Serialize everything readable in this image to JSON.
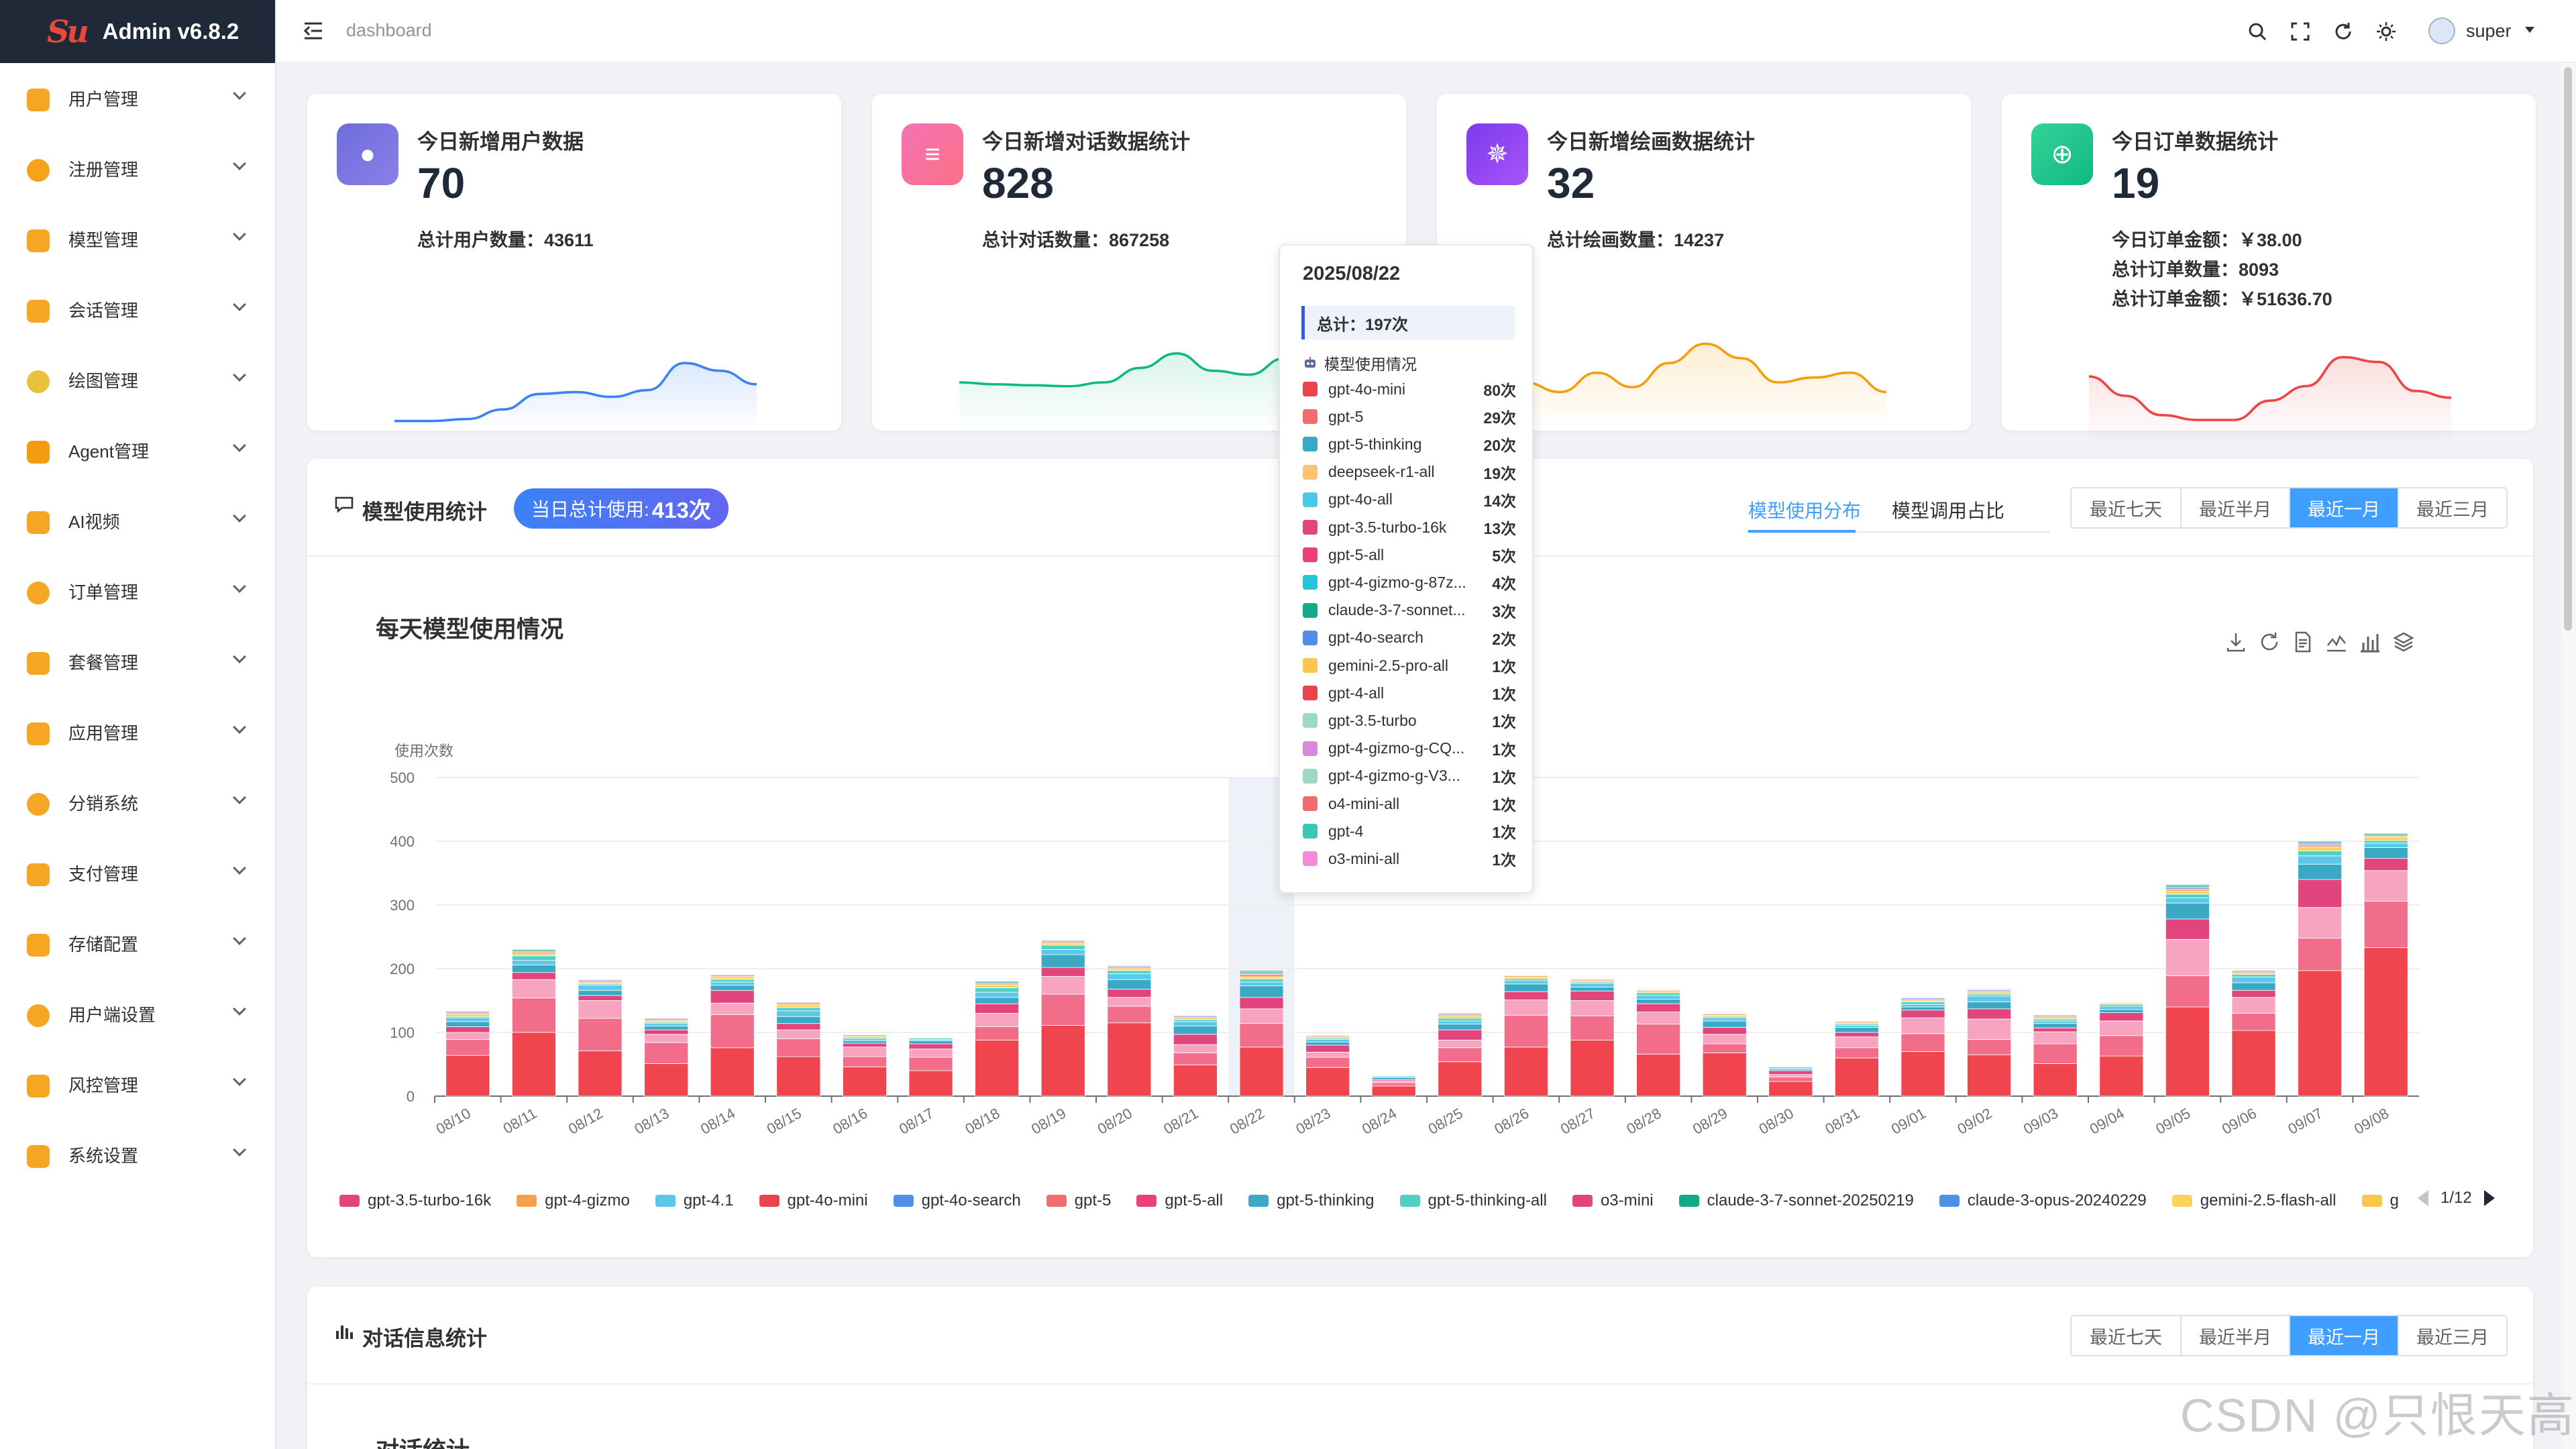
{
  "app": {
    "title": "Admin v6.8.2",
    "logo_text": "Su"
  },
  "header": {
    "breadcrumb": "dashboard",
    "username": "super"
  },
  "sidebar": {
    "items": [
      {
        "label": "用户管理",
        "icon": "user-card-icon",
        "color": "#f5a623"
      },
      {
        "label": "注册管理",
        "icon": "register-icon",
        "color": "#f7a21b"
      },
      {
        "label": "模型管理",
        "icon": "model-icon",
        "color": "#f5a623"
      },
      {
        "label": "会话管理",
        "icon": "chat-icon",
        "color": "#f5a623"
      },
      {
        "label": "绘图管理",
        "icon": "palette-icon",
        "color": "#e8c23a"
      },
      {
        "label": "Agent管理",
        "icon": "agent-icon",
        "color": "#f39c12"
      },
      {
        "label": "AI视频",
        "icon": "video-icon",
        "color": "#f5a623"
      },
      {
        "label": "订单管理",
        "icon": "order-icon",
        "color": "#f5a623"
      },
      {
        "label": "套餐管理",
        "icon": "package-icon",
        "color": "#f5a623"
      },
      {
        "label": "应用管理",
        "icon": "apps-icon",
        "color": "#f5a623"
      },
      {
        "label": "分销系统",
        "icon": "distribution-icon",
        "color": "#f5a623"
      },
      {
        "label": "支付管理",
        "icon": "payment-icon",
        "color": "#f5a623"
      },
      {
        "label": "存储配置",
        "icon": "storage-icon",
        "color": "#f5a623"
      },
      {
        "label": "用户端设置",
        "icon": "client-settings-icon",
        "color": "#f5a623"
      },
      {
        "label": "风控管理",
        "icon": "shield-icon",
        "color": "#f5a623"
      },
      {
        "label": "系统设置",
        "icon": "gear-icon",
        "color": "#f5a623"
      }
    ]
  },
  "stats": [
    {
      "title": "今日新增用户数据",
      "value": "70",
      "icon": "user-icon",
      "color_a": "#6d6ddb",
      "color_b": "#8b7fe8",
      "lines": [
        "总计用户数量：43611"
      ],
      "spark_color": "#3b82f6",
      "spark": [
        10,
        10,
        12,
        22,
        38,
        40,
        35,
        42,
        70,
        62,
        48
      ]
    },
    {
      "title": "今日新增对话数据统计",
      "value": "828",
      "icon": "message-icon",
      "color_a": "#f472b6",
      "color_b": "#fb7185",
      "lines": [
        "总计对话数量：867258"
      ],
      "spark_color": "#10b981",
      "spark": [
        50,
        48,
        47,
        46,
        50,
        65,
        80,
        62,
        58,
        75,
        90
      ]
    },
    {
      "title": "今日新增绘画数据统计",
      "value": "32",
      "icon": "sparkle-icon",
      "color_a": "#7c3aed",
      "color_b": "#a855f7",
      "lines": [
        "总计绘画数量：14237"
      ],
      "spark_color": "#f59e0b",
      "spark": [
        50,
        40,
        60,
        45,
        70,
        90,
        75,
        50,
        55,
        60,
        40
      ]
    },
    {
      "title": "今日订单数据统计",
      "value": "19",
      "icon": "compass-icon",
      "color_a": "#34d399",
      "color_b": "#10b981",
      "lines": [
        "今日订单金额：￥38.00",
        "总计订单数量：8093",
        "总计订单金额：￥51636.70"
      ],
      "spark_color": "#ef4444",
      "spark": [
        70,
        50,
        30,
        25,
        25,
        45,
        60,
        90,
        85,
        55,
        48
      ]
    }
  ],
  "model_card": {
    "title": "模型使用统计",
    "badge_label": "当日总计使用:",
    "badge_value": "413次",
    "tabs": [
      "模型使用分布",
      "模型调用占比"
    ],
    "ranges": [
      "最近七天",
      "最近半月",
      "最近一月",
      "最近三月"
    ],
    "chart_title": "每天模型使用情况",
    "legend_page": "1/12"
  },
  "dialog_card": {
    "title": "对话信息统计",
    "subtitle": "对话统计",
    "ranges": [
      "最近七天",
      "最近半月",
      "最近一月",
      "最近三月"
    ]
  },
  "tooltip": {
    "date": "2025/08/22",
    "total": "总计：197次",
    "section": "模型使用情况",
    "rows": [
      {
        "name": "gpt-4o-mini",
        "value": "80次",
        "color": "#e8434f"
      },
      {
        "name": "gpt-5",
        "value": "29次",
        "color": "#f26d6d"
      },
      {
        "name": "gpt-5-thinking",
        "value": "20次",
        "color": "#3aa9c6"
      },
      {
        "name": "deepseek-r1-all",
        "value": "19次",
        "color": "#f8c471"
      },
      {
        "name": "gpt-4o-all",
        "value": "14次",
        "color": "#48c9e8"
      },
      {
        "name": "gpt-3.5-turbo-16k",
        "value": "13次",
        "color": "#e2447d"
      },
      {
        "name": "gpt-5-all",
        "value": "5次",
        "color": "#ec407a"
      },
      {
        "name": "gpt-4-gizmo-g-87z...",
        "value": "4次",
        "color": "#22c6d6"
      },
      {
        "name": "claude-3-7-sonnet...",
        "value": "3次",
        "color": "#12a988"
      },
      {
        "name": "gpt-4o-search",
        "value": "2次",
        "color": "#4f8fe8"
      },
      {
        "name": "gemini-2.5-pro-all",
        "value": "1次",
        "color": "#f9c74f"
      },
      {
        "name": "gpt-4-all",
        "value": "1次",
        "color": "#e8434f"
      },
      {
        "name": "gpt-3.5-turbo",
        "value": "1次",
        "color": "#9ed8c8"
      },
      {
        "name": "gpt-4-gizmo-g-CQ...",
        "value": "1次",
        "color": "#d68ad9"
      },
      {
        "name": "gpt-4-gizmo-g-V3...",
        "value": "1次",
        "color": "#9fd6c4"
      },
      {
        "name": "o4-mini-all",
        "value": "1次",
        "color": "#f06b6b"
      },
      {
        "name": "gpt-4",
        "value": "1次",
        "color": "#3cc6b6"
      },
      {
        "name": "o3-mini-all",
        "value": "1次",
        "color": "#f58ad9"
      }
    ]
  },
  "chart_data": {
    "type": "bar",
    "stacked": true,
    "ylabel": "使用次数",
    "ylim": [
      0,
      500
    ],
    "yticks": [
      0,
      100,
      200,
      300,
      400,
      500
    ],
    "categories": [
      "08/10",
      "08/11",
      "08/12",
      "08/13",
      "08/14",
      "08/15",
      "08/16",
      "08/17",
      "08/18",
      "08/19",
      "08/20",
      "08/21",
      "08/22",
      "08/23",
      "08/24",
      "08/25",
      "08/26",
      "08/27",
      "08/28",
      "08/29",
      "08/30",
      "08/31",
      "09/01",
      "09/02",
      "09/03",
      "09/04",
      "09/05",
      "09/06",
      "09/07",
      "09/08"
    ],
    "totals": [
      133,
      230,
      183,
      122,
      191,
      147,
      96,
      92,
      180,
      245,
      205,
      127,
      197,
      95,
      32,
      130,
      190,
      183,
      167,
      130,
      47,
      117,
      155,
      168,
      127,
      147,
      332,
      197,
      400,
      412
    ],
    "highlight_category": "08/22",
    "legend": [
      {
        "name": "gpt-3.5-turbo-16k",
        "color": "#e2447d"
      },
      {
        "name": "gpt-4-gizmo",
        "color": "#f6a04d"
      },
      {
        "name": "gpt-4.1",
        "color": "#5bc8ea"
      },
      {
        "name": "gpt-4o-mini",
        "color": "#e8434f"
      },
      {
        "name": "gpt-4o-search",
        "color": "#4f8fe8"
      },
      {
        "name": "gpt-5",
        "color": "#f26d6d"
      },
      {
        "name": "gpt-5-all",
        "color": "#ec407a"
      },
      {
        "name": "gpt-5-thinking",
        "color": "#3aa9c6"
      },
      {
        "name": "gpt-5-thinking-all",
        "color": "#4fd1c5"
      },
      {
        "name": "o3-mini",
        "color": "#e2447d"
      },
      {
        "name": "claude-3-7-sonnet-20250219",
        "color": "#12a988"
      },
      {
        "name": "claude-3-opus-20240229",
        "color": "#4f8fe8"
      },
      {
        "name": "gemini-2.5-flash-all",
        "color": "#f9d45c"
      },
      {
        "name": "g",
        "color": "#f9c74f"
      }
    ]
  },
  "watermark": "CSDN @只恨天高"
}
